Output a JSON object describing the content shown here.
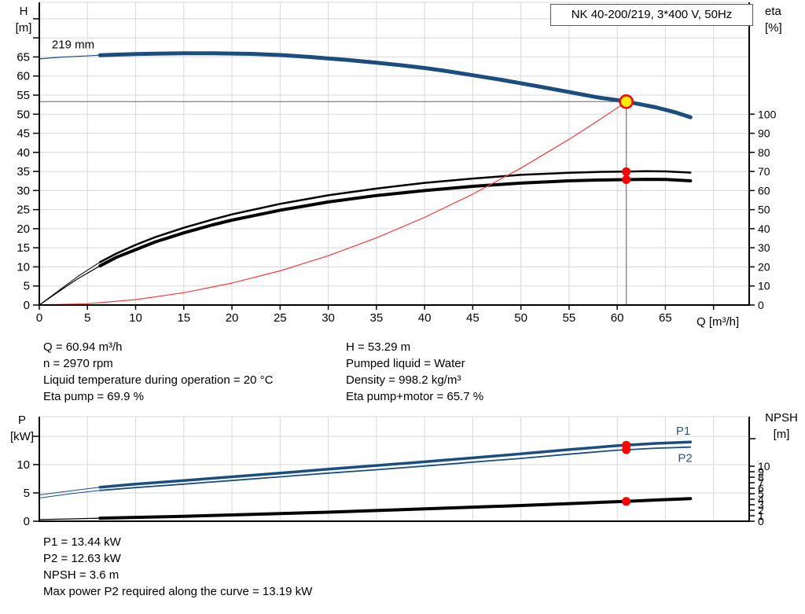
{
  "title_box": {
    "label": "NK 40-200/219, 3*400 V, 50Hz"
  },
  "info_top": {
    "left": [
      "Q = 60.94 m³/h",
      "n = 2970 rpm",
      "Liquid temperature during operation = 20 °C",
      "Eta pump = 69.9 %"
    ],
    "right": [
      "H = 53.29 m",
      "Pumped liquid = Water",
      "Density = 998.2 kg/m³",
      "Eta pump+motor = 65.7 %"
    ]
  },
  "info_bottom": [
    "P1 = 13.44 kW",
    "P2 = 12.63 kW",
    "NPSH = 3.6 m",
    "Max power P2 required along the curve = 13.19 kW"
  ],
  "colors": {
    "curve_blue": "#1b4e7e",
    "curve_black": "#000000",
    "system_red": "#fb3b3b",
    "marker_red": "#ff0000",
    "duty_yellow": "#ffec00",
    "ref_gray": "#808080",
    "grid_gray": "#d9d9d9",
    "label_blue": "#27598c"
  },
  "chart_data": [
    {
      "type": "line",
      "name": "hq-eta-chart",
      "title": "NK 40-200/219, 3*400 V, 50Hz",
      "xlabel": "Q [m³/h]",
      "ylabel_left_lines": [
        "H",
        "[m]"
      ],
      "ylabel_right_lines": [
        "eta",
        "[%]"
      ],
      "xlim": [
        0,
        73.7
      ],
      "ylim_left": [
        0,
        79.3
      ],
      "ylim_right": [
        0,
        158.6
      ],
      "xticks": [
        0,
        5,
        10,
        15,
        20,
        25,
        30,
        35,
        40,
        45,
        50,
        55,
        60,
        65
      ],
      "xticks_unlabeled": [
        70
      ],
      "yticks_left": [
        0,
        5,
        10,
        15,
        20,
        25,
        30,
        35,
        40,
        45,
        50,
        55,
        60,
        65
      ],
      "yticks_left_unlabeled": [
        70,
        75
      ],
      "yticks_right": [
        0,
        10,
        20,
        30,
        40,
        50,
        60,
        70,
        80,
        90,
        100
      ],
      "yticks_right_unlabeled": [],
      "grid_x": [
        5,
        10,
        15,
        20,
        25,
        30,
        35,
        40,
        45,
        50,
        55,
        60,
        65,
        70
      ],
      "grid_y": [
        5,
        10,
        15,
        20,
        25,
        30,
        35,
        40,
        45,
        50,
        55,
        60,
        65,
        70,
        75
      ],
      "series": [
        {
          "name": "head-curve",
          "label": "219 mm",
          "axis": "left",
          "color": "#1b4e7e",
          "width": 5,
          "thin_until": 6.3,
          "thin_width": 1.2,
          "points": [
            [
              0,
              64.5
            ],
            [
              2,
              64.9
            ],
            [
              4,
              65.15
            ],
            [
              6.3,
              65.45
            ],
            [
              8,
              65.6
            ],
            [
              10,
              65.75
            ],
            [
              12,
              65.85
            ],
            [
              15,
              65.95
            ],
            [
              18,
              65.95
            ],
            [
              20,
              65.9
            ],
            [
              22,
              65.8
            ],
            [
              25,
              65.5
            ],
            [
              28,
              65.0
            ],
            [
              30,
              64.6
            ],
            [
              32,
              64.2
            ],
            [
              35,
              63.5
            ],
            [
              38,
              62.7
            ],
            [
              40,
              62.1
            ],
            [
              42,
              61.4
            ],
            [
              45,
              60.2
            ],
            [
              48,
              59.0
            ],
            [
              50,
              58.1
            ],
            [
              52,
              57.2
            ],
            [
              55,
              55.8
            ],
            [
              58,
              54.4
            ],
            [
              60,
              53.7
            ],
            [
              60.94,
              53.29
            ],
            [
              62,
              52.8
            ],
            [
              64,
              51.8
            ],
            [
              66,
              50.5
            ],
            [
              67.6,
              49.2
            ]
          ]
        },
        {
          "name": "eta-pump-curve",
          "label": "eta pump",
          "axis": "right",
          "color": "#000000",
          "width": 2.5,
          "thin_until": 6.3,
          "thin_width": 1,
          "points": [
            [
              0,
              0
            ],
            [
              2,
              7.5
            ],
            [
              4,
              15
            ],
            [
              6.3,
              22.5
            ],
            [
              8,
              27
            ],
            [
              10,
              31.5
            ],
            [
              12,
              35.5
            ],
            [
              15,
              40.5
            ],
            [
              18,
              44.8
            ],
            [
              20,
              47.5
            ],
            [
              25,
              53
            ],
            [
              30,
              57.5
            ],
            [
              35,
              61
            ],
            [
              40,
              64
            ],
            [
              45,
              66.3
            ],
            [
              50,
              68.2
            ],
            [
              55,
              69.3
            ],
            [
              58,
              69.75
            ],
            [
              60,
              69.85
            ],
            [
              60.94,
              69.9
            ],
            [
              63,
              70.1
            ],
            [
              65,
              70.05
            ],
            [
              67.6,
              69.4
            ]
          ]
        },
        {
          "name": "eta-pump-motor-curve",
          "label": "eta pump+motor",
          "axis": "right",
          "color": "#000000",
          "width": 4,
          "thin_until": 6.3,
          "thin_width": 1.2,
          "points": [
            [
              0,
              0
            ],
            [
              2,
              7
            ],
            [
              4,
              13.8
            ],
            [
              6.3,
              20.5
            ],
            [
              8,
              25
            ],
            [
              10,
              29
            ],
            [
              12,
              33
            ],
            [
              15,
              37.8
            ],
            [
              18,
              42
            ],
            [
              20,
              44.5
            ],
            [
              25,
              49.7
            ],
            [
              30,
              54
            ],
            [
              35,
              57.4
            ],
            [
              40,
              60
            ],
            [
              45,
              62.2
            ],
            [
              50,
              63.9
            ],
            [
              55,
              65.1
            ],
            [
              58,
              65.5
            ],
            [
              60,
              65.65
            ],
            [
              60.94,
              65.7
            ],
            [
              63,
              65.85
            ],
            [
              65,
              65.8
            ],
            [
              67.6,
              65.1
            ]
          ]
        },
        {
          "name": "system-curve",
          "label": "system curve",
          "axis": "left",
          "color": "#fb3b3b",
          "width": 1.2,
          "points": [
            [
              0,
              0
            ],
            [
              5,
              0.36
            ],
            [
              10,
              1.43
            ],
            [
              15,
              3.23
            ],
            [
              20,
              5.74
            ],
            [
              25,
              8.97
            ],
            [
              30,
              12.91
            ],
            [
              35,
              17.58
            ],
            [
              40,
              22.96
            ],
            [
              45,
              29.06
            ],
            [
              50,
              35.88
            ],
            [
              55,
              43.41
            ],
            [
              58,
              48.29
            ],
            [
              60,
              51.66
            ],
            [
              60.94,
              53.29
            ]
          ]
        }
      ],
      "ref_lines": [
        {
          "name": "duty-head-line",
          "axis": "left",
          "from": [
            0,
            53.29
          ],
          "to": [
            60.94,
            53.29
          ],
          "color": "#808080",
          "width": 1.3
        },
        {
          "name": "duty-flow-line",
          "axis": "left",
          "from": [
            60.94,
            53.29
          ],
          "to": [
            60.94,
            0
          ],
          "color": "#808080",
          "width": 1.3
        }
      ],
      "markers": [
        {
          "name": "duty-point",
          "x": 60.94,
          "y": 53.29,
          "axis": "left",
          "r": 8,
          "fill": "#ffec00",
          "stroke": "#ff0000",
          "stroke_width": 2.5
        },
        {
          "name": "eta-pump-point",
          "x": 60.94,
          "y": 69.9,
          "axis": "right",
          "r": 5.5,
          "fill": "#ff0000"
        },
        {
          "name": "eta-pump-motor-point",
          "x": 60.94,
          "y": 65.7,
          "axis": "right",
          "r": 5.5,
          "fill": "#ff0000"
        }
      ],
      "annotations": [
        {
          "name": "impeller-diameter-label",
          "text": "219 mm",
          "x": 1.3,
          "y": 67.3,
          "axis": "left",
          "color": "#000000",
          "size": 15
        }
      ]
    },
    {
      "type": "line",
      "name": "power-npsh-chart",
      "title": "",
      "xlabel": "",
      "ylabel_left_lines": [
        "P",
        "[kW]"
      ],
      "ylabel_right_lines": [
        "NPSH",
        "[m]"
      ],
      "xlim": [
        0,
        73.7
      ],
      "ylim_left": [
        0,
        18.47
      ],
      "ylim_right": [
        0,
        19
      ],
      "xticks": [],
      "xticks_unlabeled": [],
      "yticks_left": [
        0,
        5,
        10
      ],
      "yticks_left_unlabeled": [
        15
      ],
      "yticks_right": [
        0,
        1,
        2,
        3,
        4,
        5,
        6,
        7,
        8,
        9,
        10
      ],
      "yticks_right_unlabeled": [
        15
      ],
      "grid_x": [
        5,
        10,
        15,
        20,
        25,
        30,
        35,
        40,
        45,
        50,
        55,
        60,
        65,
        70
      ],
      "grid_y": [
        5,
        10,
        15
      ],
      "series": [
        {
          "name": "p1-curve",
          "label": "P1",
          "axis": "left",
          "color": "#1b4e7e",
          "width": 3.5,
          "thin_until": 6.3,
          "thin_width": 1,
          "points": [
            [
              0,
              4.65
            ],
            [
              3,
              5.3
            ],
            [
              6.3,
              6.0
            ],
            [
              10,
              6.55
            ],
            [
              15,
              7.2
            ],
            [
              20,
              7.85
            ],
            [
              25,
              8.5
            ],
            [
              30,
              9.2
            ],
            [
              35,
              9.85
            ],
            [
              40,
              10.5
            ],
            [
              45,
              11.2
            ],
            [
              50,
              11.9
            ],
            [
              55,
              12.65
            ],
            [
              60,
              13.35
            ],
            [
              60.94,
              13.44
            ],
            [
              64,
              13.75
            ],
            [
              67.6,
              14.0
            ]
          ]
        },
        {
          "name": "p2-curve",
          "label": "P2",
          "axis": "left",
          "color": "#1b4e7e",
          "width": 1.8,
          "thin_until": 6.3,
          "thin_width": 1,
          "points": [
            [
              0,
              4.1
            ],
            [
              3,
              4.8
            ],
            [
              6.3,
              5.45
            ],
            [
              10,
              5.95
            ],
            [
              15,
              6.55
            ],
            [
              20,
              7.2
            ],
            [
              25,
              7.85
            ],
            [
              30,
              8.5
            ],
            [
              35,
              9.1
            ],
            [
              40,
              9.75
            ],
            [
              45,
              10.45
            ],
            [
              50,
              11.1
            ],
            [
              55,
              11.85
            ],
            [
              60,
              12.55
            ],
            [
              60.94,
              12.63
            ],
            [
              64,
              12.9
            ],
            [
              67.6,
              13.1
            ]
          ]
        },
        {
          "name": "npsh-curve",
          "label": "NPSH",
          "axis": "right",
          "color": "#000000",
          "width": 4,
          "thin_until": 6.3,
          "thin_width": 1.2,
          "points": [
            [
              0,
              0.3
            ],
            [
              3,
              0.42
            ],
            [
              6.3,
              0.55
            ],
            [
              10,
              0.7
            ],
            [
              15,
              0.9
            ],
            [
              20,
              1.15
            ],
            [
              25,
              1.4
            ],
            [
              30,
              1.65
            ],
            [
              35,
              1.95
            ],
            [
              40,
              2.25
            ],
            [
              45,
              2.55
            ],
            [
              50,
              2.85
            ],
            [
              55,
              3.2
            ],
            [
              60,
              3.55
            ],
            [
              60.94,
              3.6
            ],
            [
              64,
              3.85
            ],
            [
              67.6,
              4.1
            ]
          ]
        }
      ],
      "ref_lines": [],
      "markers": [
        {
          "name": "p1-point",
          "x": 60.94,
          "y": 13.44,
          "axis": "left",
          "r": 5.5,
          "fill": "#ff0000"
        },
        {
          "name": "p2-point",
          "x": 60.94,
          "y": 12.63,
          "axis": "left",
          "r": 5.5,
          "fill": "#ff0000"
        },
        {
          "name": "npsh-point",
          "x": 60.94,
          "y": 3.6,
          "axis": "right",
          "r": 5.5,
          "fill": "#ff0000"
        }
      ],
      "annotations": [
        {
          "name": "p1-label",
          "text": "P1",
          "x": 66.1,
          "y": 15.3,
          "axis": "left",
          "color": "#27598c",
          "size": 15
        },
        {
          "name": "p2-label",
          "text": "P2",
          "x": 66.3,
          "y": 10.5,
          "axis": "left",
          "color": "#27598c",
          "size": 15
        }
      ]
    }
  ]
}
